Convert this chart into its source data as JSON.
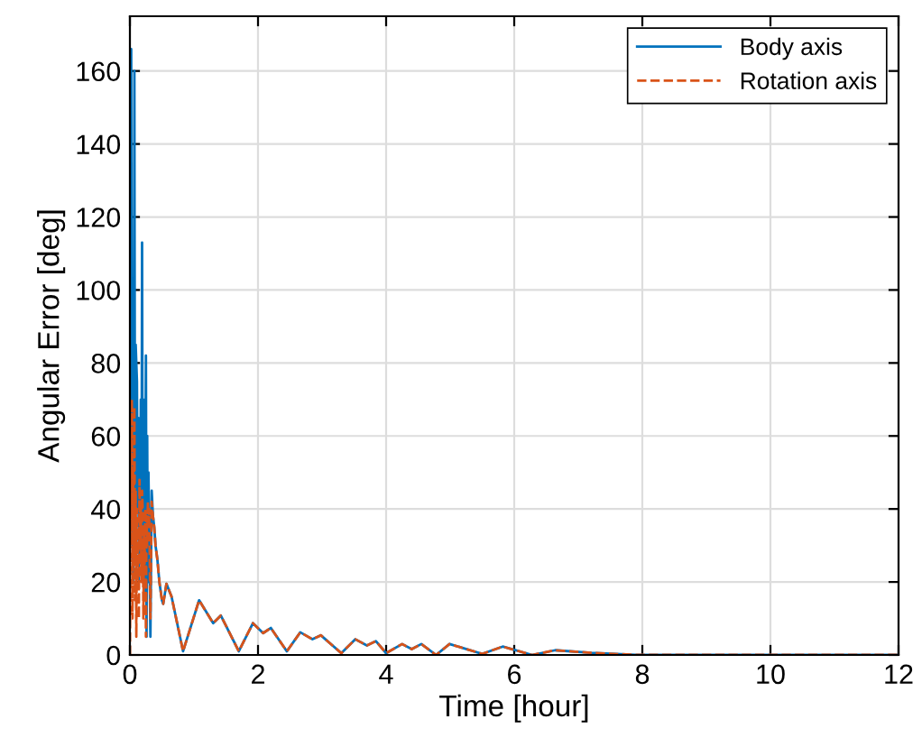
{
  "chart_data": {
    "type": "line",
    "xlabel": "Time [hour]",
    "ylabel": "Angular Error [deg]",
    "xlim": [
      0,
      12
    ],
    "ylim": [
      0,
      175
    ],
    "xticks": [
      0,
      2,
      4,
      6,
      8,
      10,
      12
    ],
    "yticks": [
      0,
      20,
      40,
      60,
      80,
      100,
      120,
      140,
      160
    ],
    "grid": true,
    "legend": "top right",
    "series": [
      {
        "name": "Body axis",
        "color": "#0072bd",
        "line_style": "solid",
        "x": [
          0.01,
          0.02,
          0.03,
          0.04,
          0.05,
          0.06,
          0.07,
          0.08,
          0.09,
          0.11,
          0.12,
          0.13,
          0.14,
          0.15,
          0.16,
          0.17,
          0.18,
          0.19,
          0.2,
          0.21,
          0.22,
          0.23,
          0.24,
          0.25,
          0.26,
          0.27,
          0.28,
          0.29,
          0.3,
          0.32,
          0.34,
          0.36,
          0.38,
          0.4,
          0.43,
          0.46,
          0.5,
          0.52,
          0.57,
          0.65,
          0.83,
          1.08,
          1.3,
          1.42,
          1.7,
          1.92,
          2.08,
          2.2,
          2.45,
          2.66,
          2.85,
          2.98,
          3.3,
          3.52,
          3.7,
          3.84,
          4.0,
          4.25,
          4.4,
          4.55,
          4.78,
          4.99,
          5.5,
          5.82,
          6.28,
          6.64,
          7.2,
          7.9,
          10,
          12
        ],
        "values": [
          80,
          166,
          40,
          70,
          20,
          60,
          160,
          30,
          85,
          75,
          40,
          65,
          20,
          55,
          35,
          70,
          25,
          113,
          30,
          60,
          15,
          70,
          40,
          82,
          5,
          60,
          20,
          50,
          35,
          5,
          45,
          38,
          35,
          30,
          26,
          20,
          15,
          14,
          19.5,
          16,
          1,
          15,
          8.7,
          10.8,
          1,
          8.7,
          6,
          7.4,
          1,
          6.2,
          4.3,
          5.4,
          0.5,
          4.3,
          2.6,
          3.8,
          0.5,
          3,
          1.6,
          3,
          0,
          3,
          0.3,
          2.3,
          0,
          1.3,
          0.6,
          0,
          0,
          0
        ]
      },
      {
        "name": "Rotation axis",
        "color": "#d95319",
        "line_style": "dashed",
        "x": [
          0,
          0.01,
          0.02,
          0.03,
          0.04,
          0.05,
          0.06,
          0.07,
          0.08,
          0.09,
          0.1,
          0.11,
          0.12,
          0.13,
          0.14,
          0.15,
          0.16,
          0.17,
          0.18,
          0.19,
          0.2,
          0.21,
          0.22,
          0.23,
          0.24,
          0.25,
          0.26,
          0.27,
          0.28,
          0.29,
          0.3,
          0.32,
          0.34,
          0.36,
          0.38,
          0.4,
          0.43,
          0.46,
          0.5,
          0.52,
          0.57,
          0.65,
          0.83,
          1.08,
          1.3,
          1.42,
          1.7,
          1.92,
          2.08,
          2.2,
          2.45,
          2.66,
          2.85,
          2.98,
          3.3,
          3.52,
          3.7,
          3.84,
          4.0,
          4.25,
          4.4,
          4.55,
          4.78,
          4.99,
          5.5,
          5.82,
          6.28,
          6.64,
          7.2,
          7.9,
          10,
          12
        ],
        "values": [
          0,
          60,
          30,
          70,
          10,
          50,
          25,
          68,
          15,
          45,
          5,
          40,
          20,
          35,
          10,
          48,
          30,
          42,
          20,
          45,
          40,
          10,
          35,
          25,
          40,
          5,
          38,
          30,
          42,
          35,
          40,
          10,
          42,
          38,
          35,
          30,
          26,
          20,
          15,
          14,
          19.5,
          16,
          1,
          15,
          8.7,
          10.8,
          1,
          8.7,
          6,
          7.4,
          1,
          6.2,
          4.3,
          5.4,
          0.5,
          4.3,
          2.6,
          3.8,
          0.5,
          3,
          1.6,
          3,
          0,
          3,
          0.3,
          2.3,
          0,
          1.3,
          0.6,
          0,
          0,
          0
        ]
      }
    ]
  }
}
